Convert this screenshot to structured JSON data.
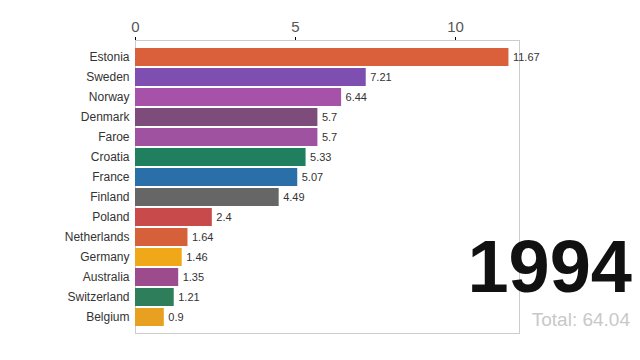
{
  "chart_data": {
    "type": "bar",
    "orientation": "horizontal",
    "categories": [
      "Estonia",
      "Sweden",
      "Norway",
      "Denmark",
      "Faroe",
      "Croatia",
      "France",
      "Finland",
      "Poland",
      "Netherlands",
      "Germany",
      "Australia",
      "Switzerland",
      "Belgium"
    ],
    "values": [
      11.67,
      7.21,
      6.44,
      5.7,
      5.7,
      5.33,
      5.07,
      4.49,
      2.4,
      1.64,
      1.46,
      1.35,
      1.21,
      0.9
    ],
    "colors": [
      "#d9603b",
      "#7e4fb0",
      "#a552a8",
      "#7d4c7a",
      "#9f52a0",
      "#1f7f5e",
      "#2a6fa8",
      "#666666",
      "#c94a4a",
      "#d6603a",
      "#f0a818",
      "#9c4c8c",
      "#2e7d5b",
      "#e8a020"
    ],
    "xlim": [
      0,
      12
    ],
    "xticks": [
      0,
      5,
      10
    ],
    "data_labels": true,
    "annotations": [
      "1994",
      "Total: 64.04"
    ]
  }
}
